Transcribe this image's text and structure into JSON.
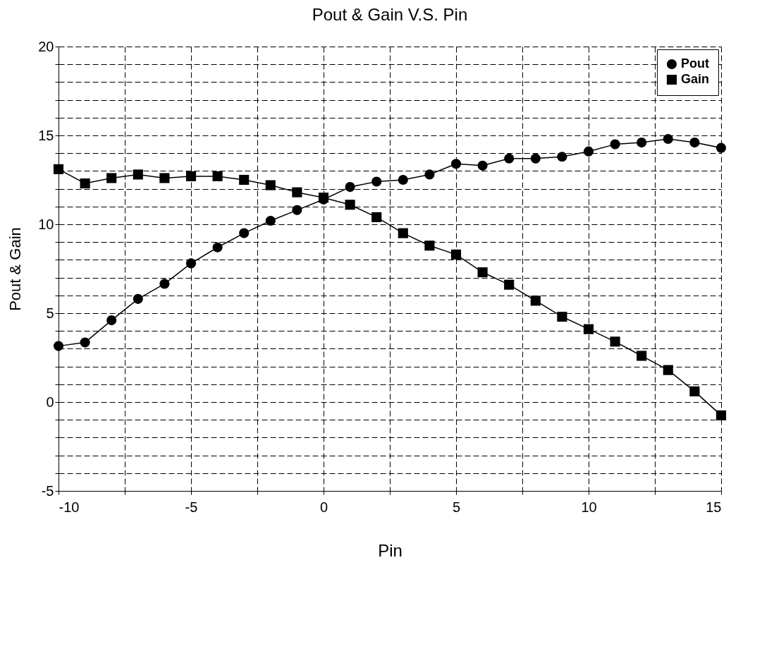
{
  "chart_data": {
    "type": "line",
    "title": "Pout & Gain V.S. Pin",
    "xlabel": "Pin",
    "ylabel": "Pout & Gain",
    "x": [
      -10,
      -9,
      -8,
      -7,
      -6,
      -5,
      -4,
      -3,
      -2,
      -1,
      0,
      1,
      2,
      3,
      4,
      5,
      6,
      7,
      8,
      9,
      10,
      11,
      12,
      13,
      14,
      15
    ],
    "series": [
      {
        "name": "Pout",
        "color": "#000000",
        "marker": "circle",
        "values": [
          3.15,
          3.35,
          4.6,
          5.8,
          6.65,
          7.8,
          8.7,
          9.5,
          10.2,
          10.8,
          11.4,
          12.1,
          12.4,
          12.5,
          12.8,
          13.4,
          13.3,
          13.7,
          13.7,
          13.8,
          14.1,
          14.5,
          14.6,
          14.8,
          14.6,
          14.3
        ]
      },
      {
        "name": "Gain",
        "color": "#000000",
        "marker": "square",
        "values": [
          13.1,
          12.3,
          12.6,
          12.8,
          12.6,
          12.7,
          12.7,
          12.5,
          12.2,
          11.8,
          11.5,
          11.1,
          10.4,
          9.5,
          8.8,
          8.3,
          7.3,
          6.6,
          5.7,
          4.8,
          4.1,
          3.4,
          2.6,
          1.8,
          0.6,
          -0.75
        ]
      }
    ],
    "xlim": [
      -10,
      15
    ],
    "xticks": [
      -10,
      {
        "value": -7.5,
        "label": null
      },
      -5,
      {
        "value": -2.5,
        "label": null
      },
      0,
      {
        "value": 2.5,
        "label": null
      },
      5,
      {
        "value": 7.5,
        "label": null
      },
      10,
      {
        "value": 12.5,
        "label": null
      },
      15
    ],
    "ylim": [
      -5,
      20
    ],
    "yticks": [
      -5,
      {
        "value": -4,
        "label": null
      },
      {
        "value": -3,
        "label": null
      },
      {
        "value": -2,
        "label": null
      },
      {
        "value": -1,
        "label": null
      },
      0,
      {
        "value": 1,
        "label": null
      },
      {
        "value": 2,
        "label": null
      },
      {
        "value": 3,
        "label": null
      },
      {
        "value": 4,
        "label": null
      },
      5,
      {
        "value": 6,
        "label": null
      },
      {
        "value": 7,
        "label": null
      },
      {
        "value": 8,
        "label": null
      },
      {
        "value": 9,
        "label": null
      },
      10,
      {
        "value": 11,
        "label": null
      },
      {
        "value": 12,
        "label": null
      },
      {
        "value": 13,
        "label": null
      },
      {
        "value": 14,
        "label": null
      },
      15,
      {
        "value": 16,
        "label": null
      },
      {
        "value": 17,
        "label": null
      },
      {
        "value": 18,
        "label": null
      },
      {
        "value": 19,
        "label": null
      },
      20
    ],
    "grid": true,
    "legend": "top right",
    "line_style": "solid"
  }
}
